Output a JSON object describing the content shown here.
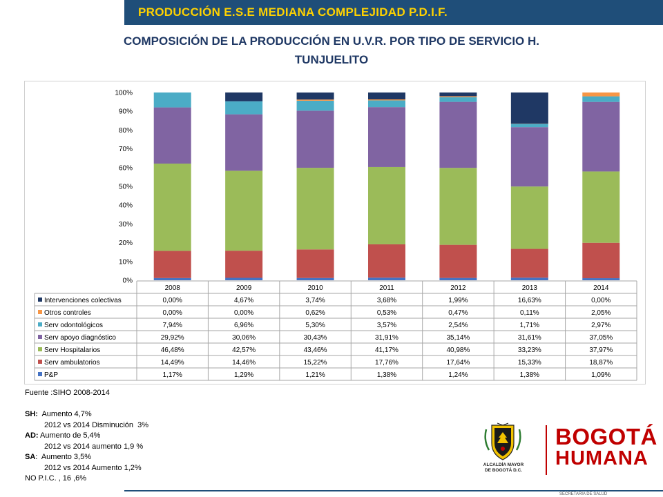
{
  "header": {
    "title": "PRODUCCIÓN E.S.E MEDIANA COMPLEJIDAD P.D.I.F.",
    "subtitle_line1": "COMPOSICIÓN DE LA PRODUCCIÓN EN U.V.R. POR TIPO DE SERVICIO  H.",
    "subtitle_line2": "TUNJUELITO"
  },
  "colors": {
    "header_bar": "#1f4e79",
    "header_text": "#ffd200",
    "subtitle": "#1f3864",
    "brand_red": "#c00000"
  },
  "chart_data": {
    "type": "bar",
    "stacked": true,
    "percent": true,
    "categories": [
      "2008",
      "2009",
      "2010",
      "2011",
      "2012",
      "2013",
      "2014"
    ],
    "ylim": [
      0,
      100
    ],
    "yticks": [
      "0%",
      "10%",
      "20%",
      "30%",
      "40%",
      "50%",
      "60%",
      "70%",
      "80%",
      "90%",
      "100%"
    ],
    "grid": false,
    "legend": "data-table",
    "series": [
      {
        "name": "P&P",
        "color": "#4472c4",
        "values": [
          1.17,
          1.29,
          1.21,
          1.38,
          1.24,
          1.38,
          1.09
        ],
        "labels": [
          "1,17%",
          "1,29%",
          "1,21%",
          "1,38%",
          "1,24%",
          "1,38%",
          "1,09%"
        ]
      },
      {
        "name": "Serv ambulatorios",
        "color": "#c0504d",
        "values": [
          14.49,
          14.46,
          15.22,
          17.76,
          17.64,
          15.33,
          18.87
        ],
        "labels": [
          "14,49%",
          "14,46%",
          "15,22%",
          "17,76%",
          "17,64%",
          "15,33%",
          "18,87%"
        ]
      },
      {
        "name": "Serv Hospitalarios",
        "color": "#9bbb59",
        "values": [
          46.48,
          42.57,
          43.46,
          41.17,
          40.98,
          33.23,
          37.97
        ],
        "labels": [
          "46,48%",
          "42,57%",
          "43,46%",
          "41,17%",
          "40,98%",
          "33,23%",
          "37,97%"
        ]
      },
      {
        "name": "Serv apoyo diagnóstico",
        "color": "#8064a2",
        "values": [
          29.92,
          30.06,
          30.43,
          31.91,
          35.14,
          31.61,
          37.05
        ],
        "labels": [
          "29,92%",
          "30,06%",
          "30,43%",
          "31,91%",
          "35,14%",
          "31,61%",
          "37,05%"
        ]
      },
      {
        "name": "Serv odontológicos",
        "color": "#4bacc6",
        "values": [
          7.94,
          6.96,
          5.3,
          3.57,
          2.54,
          1.71,
          2.97
        ],
        "labels": [
          "7,94%",
          "6,96%",
          "5,30%",
          "3,57%",
          "2,54%",
          "1,71%",
          "2,97%"
        ]
      },
      {
        "name": "Otros controles",
        "color": "#f79646",
        "values": [
          0.0,
          0.0,
          0.62,
          0.53,
          0.47,
          0.11,
          2.05
        ],
        "labels": [
          "0,00%",
          "0,00%",
          "0,62%",
          "0,53%",
          "0,47%",
          "0,11%",
          "2,05%"
        ]
      },
      {
        "name": "Intervenciones colectivas",
        "color": "#1f3864",
        "values": [
          0.0,
          4.67,
          3.74,
          3.68,
          1.99,
          16.63,
          0.0
        ],
        "labels": [
          "0,00%",
          "4,67%",
          "3,74%",
          "3,68%",
          "1,99%",
          "16,63%",
          "0,00%"
        ]
      }
    ]
  },
  "notes": {
    "source": "Fuente :SIHO 2008-2014",
    "sh_label": "SH:",
    "sh_text": "  Aumento 4,7%",
    "sh_detail": "2012 vs 2014 Disminución  3%",
    "ad_label": "AD:",
    "ad_text": " Aumento de 5,4%",
    "ad_detail": "2012 vs 2014 aumento 1,9 %",
    "sa_label": "SA",
    "sa_text": ":  Aumento 3,5%",
    "sa_detail": "2012 vs 2014 Aumento 1,2%",
    "npic": "NO P.I.C. , 16 ,6%"
  },
  "logo": {
    "alcaldia_line1": "ALCALDÍA MAYOR",
    "alcaldia_line2": "DE BOGOTÁ D.C.",
    "bogota": "BOGOTÁ",
    "humana": "HUMANA"
  },
  "footer": {
    "small_text": "SECRETARÍA DE SALUD"
  }
}
